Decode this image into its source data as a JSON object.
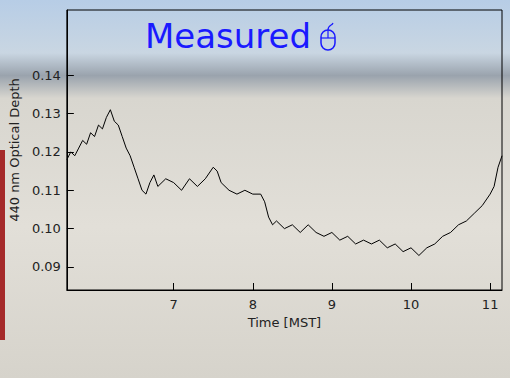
{
  "chart_data": {
    "type": "line",
    "title": "Measured",
    "x_label": "Time [MST]",
    "y_label": "440 nm Optical Depth",
    "color": "#000000",
    "grid": false,
    "xlim": [
      5.65,
      11.15
    ],
    "xticks": [
      7,
      8,
      9,
      10,
      11
    ],
    "ylim": [
      0.084,
      0.157
    ],
    "yticks": [
      {
        "value": 0.09,
        "label": "0.09"
      },
      {
        "value": 0.1,
        "label": "0.10"
      },
      {
        "value": 0.11,
        "label": "0.11"
      },
      {
        "value": 0.12,
        "label": "0.12"
      },
      {
        "value": 0.13,
        "label": "0.13"
      },
      {
        "value": 0.14,
        "label": "0.14"
      }
    ],
    "x": [
      5.65,
      5.7,
      5.75,
      5.8,
      5.85,
      5.9,
      5.95,
      6.0,
      6.05,
      6.1,
      6.15,
      6.2,
      6.25,
      6.3,
      6.35,
      6.4,
      6.45,
      6.5,
      6.55,
      6.6,
      6.65,
      6.7,
      6.75,
      6.8,
      6.9,
      7.0,
      7.1,
      7.2,
      7.3,
      7.4,
      7.5,
      7.55,
      7.6,
      7.7,
      7.8,
      7.9,
      8.0,
      8.1,
      8.15,
      8.2,
      8.25,
      8.3,
      8.4,
      8.5,
      8.6,
      8.7,
      8.8,
      8.9,
      9.0,
      9.1,
      9.2,
      9.3,
      9.4,
      9.5,
      9.6,
      9.7,
      9.8,
      9.9,
      10.0,
      10.1,
      10.2,
      10.3,
      10.4,
      10.5,
      10.6,
      10.7,
      10.8,
      10.9,
      11.0,
      11.05,
      11.1,
      11.15
    ],
    "values": [
      0.118,
      0.12,
      0.119,
      0.121,
      0.123,
      0.122,
      0.125,
      0.124,
      0.127,
      0.126,
      0.129,
      0.131,
      0.128,
      0.127,
      0.124,
      0.121,
      0.119,
      0.116,
      0.113,
      0.11,
      0.109,
      0.112,
      0.114,
      0.111,
      0.113,
      0.112,
      0.11,
      0.113,
      0.111,
      0.113,
      0.116,
      0.115,
      0.112,
      0.11,
      0.109,
      0.11,
      0.109,
      0.109,
      0.107,
      0.103,
      0.101,
      0.102,
      0.1,
      0.101,
      0.099,
      0.101,
      0.099,
      0.098,
      0.099,
      0.097,
      0.098,
      0.096,
      0.097,
      0.096,
      0.097,
      0.095,
      0.096,
      0.094,
      0.095,
      0.093,
      0.095,
      0.096,
      0.098,
      0.099,
      0.101,
      0.102,
      0.104,
      0.106,
      0.109,
      0.111,
      0.116,
      0.119
    ]
  }
}
